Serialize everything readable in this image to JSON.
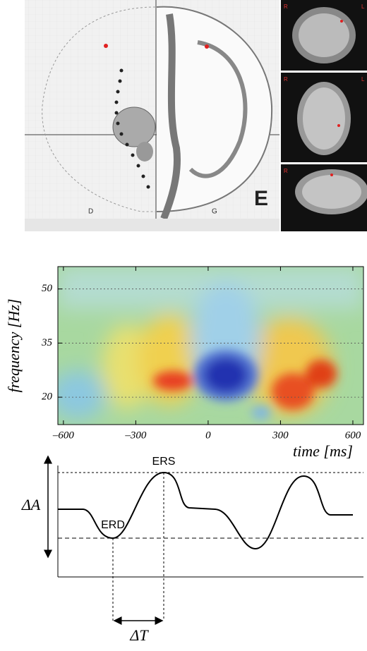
{
  "atlas": {
    "panel_letter": "E",
    "left_letter": "D",
    "right_letter": "G"
  },
  "mri": [
    {
      "left": "R",
      "right": "L"
    },
    {
      "left": "R",
      "right": "L"
    },
    {
      "left": "R"
    }
  ],
  "spectrogram": {
    "xlabel": "time [ms]",
    "ylabel": "frequency [Hz]",
    "xlim": [
      -623,
      644
    ],
    "ylim": [
      12.4,
      56.2
    ],
    "xticks": [
      {
        "value": -600,
        "label": "–600"
      },
      {
        "value": -300,
        "label": "–300"
      },
      0,
      300,
      600
    ],
    "yticks": [
      20,
      35,
      50
    ]
  },
  "schematic": {
    "peak_label": "ERS",
    "dip_label": "ERD",
    "amplitude_label": "ΔA",
    "time_label": "ΔT"
  }
}
